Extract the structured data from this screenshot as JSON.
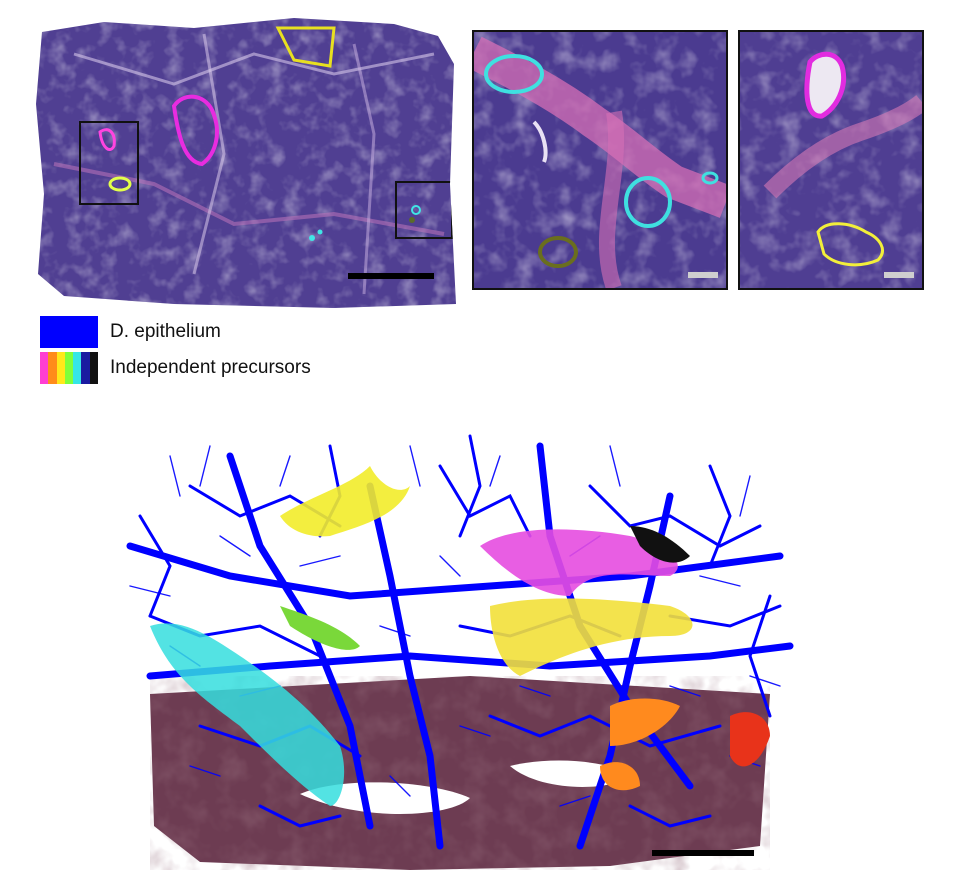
{
  "legend": {
    "items": [
      {
        "label": "D. epithelium",
        "swatch_colors": [
          "#0000ff"
        ]
      },
      {
        "label": "Independent precursors",
        "swatch_colors": [
          "#ff3fd2",
          "#ff8c1a",
          "#ffe81a",
          "#7fff3a",
          "#35e6e6",
          "#1a1aa0",
          "#111111"
        ]
      }
    ]
  },
  "colors": {
    "tissue_dark": "#4e3e8f",
    "tissue_light": "#8a6cb8",
    "stroma_pink": "#c978b9",
    "epithelium_blue": "#0000ff",
    "tissue_3d_brown": "#6b3b4e",
    "scalebar_black": "#000000",
    "scalebar_gray": "#cfcfcf"
  },
  "icons": {
    "overview_panel": "histology-overview-image",
    "inset_left": "histology-inset-image",
    "inset_right": "histology-inset-image",
    "render_3d": "3d-reconstruction-image"
  }
}
